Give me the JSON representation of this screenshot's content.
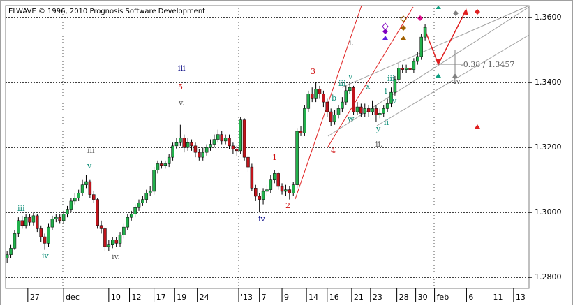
{
  "chart_data": {
    "type": "candlestick",
    "title": "ELWAVE © 1996, 2010 Prognosis Software Development",
    "up_color": "#22b14c",
    "down_color": "#c0141c",
    "xlim": [
      -0.4,
      138.6
    ],
    "ylim": [
      1.2766,
      1.3637
    ],
    "yticks": [
      {
        "value": 1.28,
        "label": "1.2800"
      },
      {
        "value": 1.3,
        "label": "1.3000"
      },
      {
        "value": 1.32,
        "label": "1.3200"
      },
      {
        "value": 1.34,
        "label": "1.3400"
      },
      {
        "value": 1.36,
        "label": "1.3600"
      }
    ],
    "xticks": [
      {
        "value": 5.5,
        "label": "27"
      },
      {
        "value": 15,
        "label": "dec"
      },
      {
        "value": 27,
        "label": "10"
      },
      {
        "value": 32.5,
        "label": "12"
      },
      {
        "value": 39,
        "label": "17"
      },
      {
        "value": 44.5,
        "label": "19"
      },
      {
        "value": 50.5,
        "label": "24"
      },
      {
        "value": 61.5,
        "label": "'13"
      },
      {
        "value": 67,
        "label": "7"
      },
      {
        "value": 73,
        "label": "9"
      },
      {
        "value": 79.5,
        "label": "14"
      },
      {
        "value": 85,
        "label": "16"
      },
      {
        "value": 91.5,
        "label": "21"
      },
      {
        "value": 96.5,
        "label": "23"
      },
      {
        "value": 103.5,
        "label": "28"
      },
      {
        "value": 108.5,
        "label": "30"
      },
      {
        "value": 113.5,
        "label": "feb"
      },
      {
        "value": 122,
        "label": "6"
      },
      {
        "value": 128.5,
        "label": "11"
      },
      {
        "value": 134.5,
        "label": "13"
      }
    ],
    "grid": true,
    "x": [
      0,
      1,
      2,
      3,
      4,
      5,
      6,
      7,
      8,
      9,
      10,
      11,
      12,
      13,
      14,
      15,
      16,
      17,
      18,
      19,
      20,
      21,
      22,
      23,
      24,
      25,
      26,
      27,
      28,
      29,
      30,
      31,
      32,
      33,
      34,
      35,
      36,
      37,
      38,
      39,
      40,
      41,
      42,
      43,
      44,
      45,
      46,
      47,
      48,
      49,
      50,
      51,
      52,
      53,
      54,
      55,
      56,
      57,
      58,
      59,
      60,
      61,
      62,
      63,
      64,
      65,
      66,
      67,
      68,
      69,
      70,
      71,
      72,
      73,
      74,
      75,
      76,
      77,
      78,
      79,
      80,
      81,
      82,
      83,
      84,
      85,
      86,
      87,
      88,
      89,
      90,
      91,
      92,
      93,
      94,
      95,
      96,
      97,
      98,
      99,
      100,
      101,
      102,
      103,
      104,
      105,
      106,
      107,
      108,
      109,
      110,
      111
    ],
    "open": [
      1.286,
      1.287,
      1.289,
      1.2935,
      1.2975,
      1.296,
      1.2985,
      1.297,
      1.299,
      1.295,
      1.2925,
      1.2905,
      1.2955,
      1.298,
      1.2985,
      1.2975,
      1.2995,
      1.301,
      1.3035,
      1.3045,
      1.306,
      1.3085,
      1.3095,
      1.3055,
      1.304,
      1.296,
      1.295,
      1.2895,
      1.29,
      1.2915,
      1.2905,
      1.293,
      1.2955,
      1.2985,
      1.2995,
      1.3015,
      1.303,
      1.304,
      1.306,
      1.3065,
      1.313,
      1.315,
      1.3145,
      1.315,
      1.317,
      1.3205,
      1.3215,
      1.323,
      1.32,
      1.3215,
      1.3205,
      1.3185,
      1.317,
      1.3185,
      1.32,
      1.321,
      1.3225,
      1.324,
      1.322,
      1.323,
      1.3205,
      1.3195,
      1.319,
      1.3285,
      1.317,
      1.314,
      1.3075,
      1.305,
      1.304,
      1.3065,
      1.307,
      1.31,
      1.312,
      1.308,
      1.3065,
      1.307,
      1.306,
      1.3085,
      1.325,
      1.3245,
      1.332,
      1.3365,
      1.335,
      1.338,
      1.3365,
      1.334,
      1.331,
      1.328,
      1.33,
      1.332,
      1.334,
      1.3375,
      1.3385,
      1.331,
      1.3325,
      1.3305,
      1.332,
      1.331,
      1.332,
      1.33,
      1.3305,
      1.332,
      1.3335,
      1.337,
      1.341,
      1.3445,
      1.344,
      1.3445,
      1.344,
      1.3465,
      1.348,
      1.354
    ],
    "high": [
      1.288,
      1.29,
      1.2945,
      1.2985,
      1.299,
      1.2995,
      1.2995,
      1.3,
      1.2995,
      1.296,
      1.2935,
      1.2965,
      1.299,
      1.2995,
      1.2995,
      1.3005,
      1.302,
      1.3045,
      1.306,
      1.307,
      1.31,
      1.3115,
      1.31,
      1.3065,
      1.3045,
      1.2975,
      1.2955,
      1.2915,
      1.2925,
      1.2925,
      1.294,
      1.2965,
      1.2995,
      1.3005,
      1.3025,
      1.304,
      1.305,
      1.307,
      1.308,
      1.314,
      1.316,
      1.316,
      1.316,
      1.318,
      1.3215,
      1.323,
      1.327,
      1.324,
      1.323,
      1.3225,
      1.3215,
      1.3195,
      1.32,
      1.321,
      1.3225,
      1.324,
      1.3255,
      1.325,
      1.324,
      1.324,
      1.3215,
      1.3205,
      1.3295,
      1.329,
      1.318,
      1.315,
      1.3085,
      1.306,
      1.3075,
      1.3085,
      1.3115,
      1.313,
      1.3125,
      1.309,
      1.3085,
      1.308,
      1.3095,
      1.326,
      1.3265,
      1.333,
      1.3375,
      1.3385,
      1.34,
      1.339,
      1.3375,
      1.335,
      1.332,
      1.3315,
      1.333,
      1.3355,
      1.339,
      1.34,
      1.339,
      1.334,
      1.3335,
      1.3335,
      1.333,
      1.3345,
      1.333,
      1.332,
      1.333,
      1.335,
      1.3385,
      1.342,
      1.346,
      1.3455,
      1.3455,
      1.346,
      1.3475,
      1.3495,
      1.355,
      1.358
    ],
    "low": [
      1.2845,
      1.286,
      1.2885,
      1.2925,
      1.295,
      1.295,
      1.296,
      1.296,
      1.294,
      1.291,
      1.2885,
      1.2895,
      1.2945,
      1.297,
      1.2965,
      1.2965,
      1.2985,
      1.3,
      1.3025,
      1.3035,
      1.305,
      1.3075,
      1.3045,
      1.303,
      1.295,
      1.2935,
      1.288,
      1.288,
      1.289,
      1.2895,
      1.2895,
      1.292,
      1.2945,
      1.2975,
      1.2985,
      1.3005,
      1.302,
      1.303,
      1.305,
      1.3055,
      1.312,
      1.3135,
      1.3135,
      1.314,
      1.316,
      1.3195,
      1.3205,
      1.3185,
      1.319,
      1.319,
      1.317,
      1.316,
      1.316,
      1.3175,
      1.319,
      1.32,
      1.3215,
      1.321,
      1.321,
      1.3195,
      1.318,
      1.3175,
      1.318,
      1.316,
      1.3125,
      1.3065,
      1.3035,
      1.3,
      1.3025,
      1.305,
      1.306,
      1.309,
      1.307,
      1.3055,
      1.305,
      1.304,
      1.305,
      1.3075,
      1.3235,
      1.3235,
      1.331,
      1.334,
      1.334,
      1.335,
      1.3325,
      1.3295,
      1.3265,
      1.327,
      1.329,
      1.331,
      1.333,
      1.3365,
      1.33,
      1.33,
      1.3295,
      1.3295,
      1.3295,
      1.33,
      1.328,
      1.329,
      1.3295,
      1.331,
      1.3325,
      1.336,
      1.34,
      1.343,
      1.343,
      1.342,
      1.343,
      1.3455,
      1.347,
      1.353
    ],
    "close": [
      1.287,
      1.289,
      1.2935,
      1.2975,
      1.296,
      1.2985,
      1.297,
      1.299,
      1.295,
      1.2925,
      1.2905,
      1.2955,
      1.298,
      1.2985,
      1.2975,
      1.2995,
      1.301,
      1.3035,
      1.3045,
      1.306,
      1.3085,
      1.3095,
      1.3055,
      1.304,
      1.296,
      1.295,
      1.2895,
      1.29,
      1.2915,
      1.2905,
      1.293,
      1.2955,
      1.2985,
      1.2995,
      1.3015,
      1.303,
      1.304,
      1.306,
      1.3065,
      1.313,
      1.315,
      1.3145,
      1.315,
      1.317,
      1.3205,
      1.3215,
      1.323,
      1.32,
      1.3215,
      1.3205,
      1.3185,
      1.317,
      1.3185,
      1.32,
      1.321,
      1.3225,
      1.324,
      1.322,
      1.323,
      1.3205,
      1.3195,
      1.319,
      1.3285,
      1.317,
      1.314,
      1.3075,
      1.305,
      1.304,
      1.3065,
      1.307,
      1.31,
      1.312,
      1.308,
      1.3065,
      1.307,
      1.306,
      1.3085,
      1.325,
      1.3245,
      1.332,
      1.3365,
      1.335,
      1.338,
      1.3365,
      1.334,
      1.331,
      1.328,
      1.33,
      1.332,
      1.334,
      1.3375,
      1.3385,
      1.331,
      1.3325,
      1.3305,
      1.332,
      1.331,
      1.332,
      1.33,
      1.3305,
      1.332,
      1.3335,
      1.337,
      1.341,
      1.3445,
      1.344,
      1.3445,
      1.344,
      1.3465,
      1.348,
      1.354,
      1.357
    ],
    "annotations": [
      {
        "text": "iii",
        "color": "#000080"
      },
      {
        "text": "5",
        "color": "#d01010"
      },
      {
        "text": "v.",
        "color": "#606060"
      },
      {
        "text": "iii",
        "color": "#606060"
      },
      {
        "text": "v",
        "color": "#10907a"
      },
      {
        "text": "iii",
        "color": "#10907a"
      },
      {
        "text": "iv",
        "color": "#10907a"
      },
      {
        "text": "iv.",
        "color": "#606060"
      },
      {
        "text": "iv",
        "color": "#000080"
      },
      {
        "text": "1",
        "color": "#d01010"
      },
      {
        "text": "2",
        "color": "#d01010"
      },
      {
        "text": "3",
        "color": "#d01010"
      },
      {
        "text": "4",
        "color": "#d01010"
      },
      {
        "text": "i.",
        "color": "#606060"
      },
      {
        "text": "v",
        "color": "#10907a"
      },
      {
        "text": "iii",
        "color": "#10907a"
      },
      {
        "text": "b",
        "color": "#10907a"
      },
      {
        "text": "x",
        "color": "#10907a"
      },
      {
        "text": "iii",
        "color": "#10907a"
      },
      {
        "text": "i",
        "color": "#10907a"
      },
      {
        "text": "v",
        "color": "#10907a"
      },
      {
        "text": "ii",
        "color": "#10907a"
      },
      {
        "text": "y",
        "color": "#10907a"
      },
      {
        "text": "w",
        "color": "#10907a"
      },
      {
        "text": "ii.",
        "color": "#606060"
      },
      {
        "text": "-0.38 / 1.3457",
        "color": "#606060"
      },
      {
        "text": "iv.",
        "color": "#606060"
      }
    ]
  }
}
